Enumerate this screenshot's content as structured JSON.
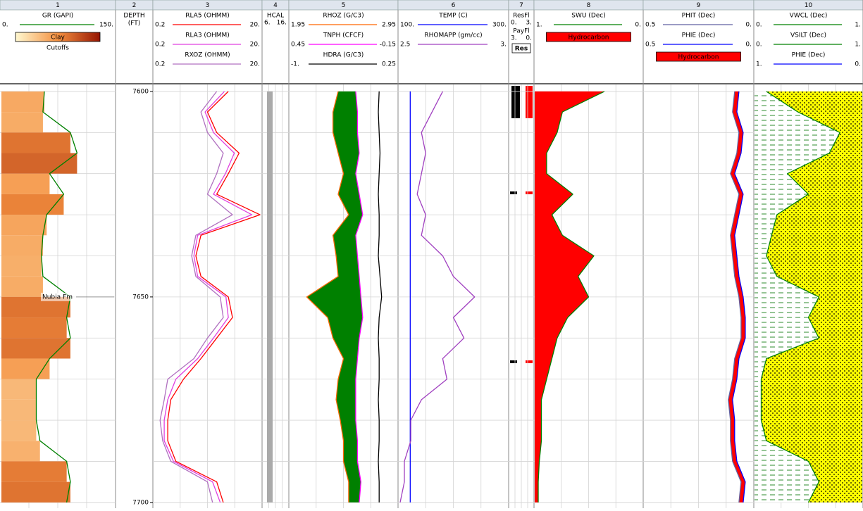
{
  "depth_lim": [
    7598.3,
    7701.4
  ],
  "depth_labels": [
    7600,
    7650,
    7700
  ],
  "depth_grid": [
    7600,
    7610,
    7620,
    7630,
    7640,
    7650,
    7660,
    7670,
    7680,
    7690,
    7700
  ],
  "depth": [
    7600,
    7605,
    7610,
    7615,
    7620,
    7625,
    7630,
    7635,
    7640,
    7645,
    7650,
    7655,
    7660,
    7665,
    7670,
    7675,
    7680,
    7685,
    7690,
    7695,
    7700
  ],
  "annotation": {
    "text": "Nubia Fm",
    "depth": 7650
  },
  "tracks": [
    {
      "number": "1",
      "headers": [
        {
          "name": "GR (GAPI)",
          "left": {
            "value": 0,
            "label": "0."
          },
          "right": {
            "value": 150,
            "label": "150."
          },
          "color": "#008000",
          "bands": true,
          "values": [
            57,
            55,
            92,
            101,
            64,
            83,
            60,
            55,
            53,
            55,
            92,
            87,
            92,
            64,
            46,
            46,
            46,
            51,
            87,
            92,
            87
          ]
        }
      ],
      "labels": [
        {
          "text": "Clay",
          "color": "#f4a040"
        },
        {
          "text": "Cutoffs"
        }
      ]
    },
    {
      "number": "2",
      "titles": [
        "DEPTH",
        "(FT)"
      ]
    },
    {
      "number": "3",
      "log": true,
      "headers": [
        {
          "name": "RLA5 (OHMM)",
          "left": {
            "value": 0.2,
            "label": "0.2"
          },
          "right": {
            "value": 20,
            "label": "20."
          },
          "color": "#ff0000",
          "values": [
            5,
            2,
            3,
            8,
            5,
            3,
            20,
            1.5,
            1.2,
            1.5,
            5,
            6,
            3,
            1.5,
            0.7,
            0.4,
            0.35,
            0.35,
            0.5,
            3,
            4
          ]
        },
        {
          "name": "RLA3 (OHMM)",
          "left": {
            "value": 0.2,
            "label": "0.2"
          },
          "right": {
            "value": 20,
            "label": "20."
          },
          "color": "#e040e0",
          "values": [
            4.2,
            1.8,
            2.6,
            6.5,
            4.4,
            2.6,
            14,
            1.3,
            1.1,
            1.3,
            4.5,
            5,
            2.6,
            1.3,
            0.5,
            0.35,
            0.3,
            0.3,
            0.45,
            2.5,
            3.5
          ]
        },
        {
          "name": "RXOZ (OHMM)",
          "left": {
            "value": 0.2,
            "label": "0.2"
          },
          "right": {
            "value": 20,
            "label": "20."
          },
          "color": "#b070c0",
          "values": [
            3,
            1.5,
            2,
            4,
            3,
            2,
            6,
            1.2,
            1,
            1.2,
            3.5,
            4,
            2,
            1.1,
            0.35,
            0.3,
            0.25,
            0.28,
            0.4,
            2,
            2.5
          ]
        }
      ]
    },
    {
      "number": "4",
      "headers": [
        {
          "name": "HCAL",
          "left": {
            "value": 6,
            "label": "6."
          },
          "right": {
            "value": 16,
            "label": "16."
          },
          "color": "#aaaaaa",
          "width": 8,
          "values": [
            8.5,
            8.5,
            8.5,
            8.5,
            8.5,
            8.5,
            8.5,
            8.5,
            8.5,
            8.5,
            8.5,
            8.5,
            8.5,
            8.5,
            8.5,
            8.5,
            8.5,
            8.5,
            8.5,
            8.5,
            8.5
          ]
        }
      ]
    },
    {
      "number": "5",
      "headers": [
        {
          "name": "RHOZ (G/C3)",
          "left": {
            "value": 1.95,
            "label": "1.95"
          },
          "right": {
            "value": 2.95,
            "label": "2.95"
          },
          "color": "#ff6600",
          "fill_between": 1,
          "fill": "#008000",
          "values": [
            2.4,
            2.35,
            2.35,
            2.4,
            2.45,
            2.4,
            2.5,
            2.35,
            2.38,
            2.4,
            2.1,
            2.3,
            2.35,
            2.45,
            2.4,
            2.38,
            2.42,
            2.45,
            2.45,
            2.5,
            2.5
          ]
        },
        {
          "name": "TNPH (CFCF)",
          "left": {
            "value": 0.45,
            "label": "0.45"
          },
          "right": {
            "value": -0.15,
            "label": "-0.15"
          },
          "color": "#ff00ff",
          "values": [
            0.08,
            0.07,
            0.07,
            0.06,
            0.08,
            0.06,
            0.04,
            0.08,
            0.07,
            0.06,
            0.05,
            0.04,
            0.06,
            0.07,
            0.08,
            0.08,
            0.08,
            0.07,
            0.07,
            0.05,
            0.06
          ]
        },
        {
          "name": "HDRA (G/C3)",
          "left": {
            "value": -1,
            "label": "-1."
          },
          "right": {
            "value": 0.25,
            "label": "0.25"
          },
          "color": "#000000",
          "values": [
            0.05,
            0.04,
            0.05,
            0.06,
            0.05,
            0.04,
            0.05,
            0.05,
            0.04,
            0.06,
            0.08,
            0.05,
            0.04,
            0.05,
            0.05,
            0.04,
            0.05,
            0.05,
            0.04,
            0.05,
            0.05
          ]
        }
      ]
    },
    {
      "number": "6",
      "headers": [
        {
          "name": "TEMP (C)",
          "left": {
            "value": 100,
            "label": "100."
          },
          "right": {
            "value": 300,
            "label": "300."
          },
          "color": "#0000ff",
          "values": [
            119,
            119,
            119,
            119,
            119,
            119,
            119,
            119,
            119,
            119,
            119,
            119,
            119,
            119,
            119,
            119,
            119,
            119,
            119,
            119,
            119
          ]
        },
        {
          "name": "RHOMAPP (gm/cc)",
          "left": {
            "value": 2.5,
            "label": "2.5"
          },
          "right": {
            "value": 3,
            "label": "3."
          },
          "color": "#a040c0",
          "values": [
            2.7,
            2.65,
            2.6,
            2.62,
            2.6,
            2.58,
            2.62,
            2.6,
            2.7,
            2.75,
            2.85,
            2.75,
            2.8,
            2.7,
            2.72,
            2.6,
            2.55,
            2.55,
            2.52,
            2.52,
            2.5
          ]
        }
      ]
    },
    {
      "number": "7",
      "headers": [
        {
          "name": "ResFl",
          "left": {
            "value": 0,
            "label": "0."
          },
          "right": {
            "value": 3,
            "label": "3."
          },
          "color": "#000000"
        },
        {
          "name": "PayFl",
          "left": {
            "value": 3,
            "label": "3."
          },
          "right": {
            "value": 0,
            "label": "0."
          },
          "color": "#ff0000"
        }
      ],
      "labels": [
        {
          "text": "Res",
          "color": "#ffffff"
        }
      ]
    },
    {
      "number": "8",
      "headers": [
        {
          "name": "SWU (Dec)",
          "left": {
            "value": 1,
            "label": "1."
          },
          "right": {
            "value": 0,
            "label": "0."
          },
          "color": "#008000",
          "fill_left": "#ff0000",
          "values": [
            0.35,
            0.75,
            0.8,
            0.9,
            0.9,
            0.65,
            0.85,
            0.75,
            0.45,
            0.6,
            0.5,
            0.7,
            0.8,
            0.85,
            0.9,
            0.95,
            0.95,
            0.95,
            0.97,
            0.98,
            0.98
          ]
        }
      ],
      "labels": [
        {
          "text": "Hydrocarbon",
          "color": "#ff0000"
        }
      ]
    },
    {
      "number": "9",
      "headers": [
        {
          "name": "PHIT (Dec)",
          "left": {
            "value": 0.5,
            "label": "0.5"
          },
          "right": {
            "value": 0,
            "label": "0."
          },
          "color": "#6060a0",
          "fill_between": 1,
          "fill": "#ff0000",
          "values": [
            0.08,
            0.09,
            0.06,
            0.07,
            0.1,
            0.06,
            0.08,
            0.1,
            0.09,
            0.08,
            0.06,
            0.05,
            0.05,
            0.08,
            0.09,
            0.11,
            0.1,
            0.1,
            0.09,
            0.05,
            0.06
          ]
        },
        {
          "name": "PHIE (Dec)",
          "left": {
            "value": 0.5,
            "label": "0.5"
          },
          "right": {
            "value": 0,
            "label": "0."
          },
          "color": "#0000ff",
          "values": [
            0.06,
            0.07,
            0.04,
            0.05,
            0.08,
            0.04,
            0.06,
            0.08,
            0.07,
            0.06,
            0.04,
            0.03,
            0.03,
            0.06,
            0.07,
            0.09,
            0.08,
            0.08,
            0.07,
            0.03,
            0.04
          ]
        }
      ],
      "labels": [
        {
          "text": "Hydrocarbon",
          "color": "#ff0000"
        }
      ]
    },
    {
      "number": "10",
      "headers": [
        {
          "name": "VWCL (Dec)",
          "left": {
            "value": 0,
            "label": "0."
          },
          "right": {
            "value": 1,
            "label": "1."
          },
          "color": "#008000",
          "fill_left": "#ffffff",
          "fill_right": "#ffff00",
          "hatch": true,
          "values": [
            0.1,
            0.4,
            0.8,
            0.7,
            0.3,
            0.5,
            0.2,
            0.15,
            0.1,
            0.2,
            0.6,
            0.5,
            0.6,
            0.1,
            0.05,
            0.05,
            0.05,
            0.1,
            0.5,
            0.6,
            0.5
          ]
        },
        {
          "name": "VSILT (Dec)",
          "left": {
            "value": 0,
            "label": "0."
          },
          "right": {
            "value": 1,
            "label": "1."
          },
          "color": "#008000"
        },
        {
          "name": "PHIE (Dec)",
          "left": {
            "value": 1,
            "label": "1."
          },
          "right": {
            "value": 0,
            "label": "0."
          },
          "color": "#0000ff"
        }
      ]
    }
  ]
}
